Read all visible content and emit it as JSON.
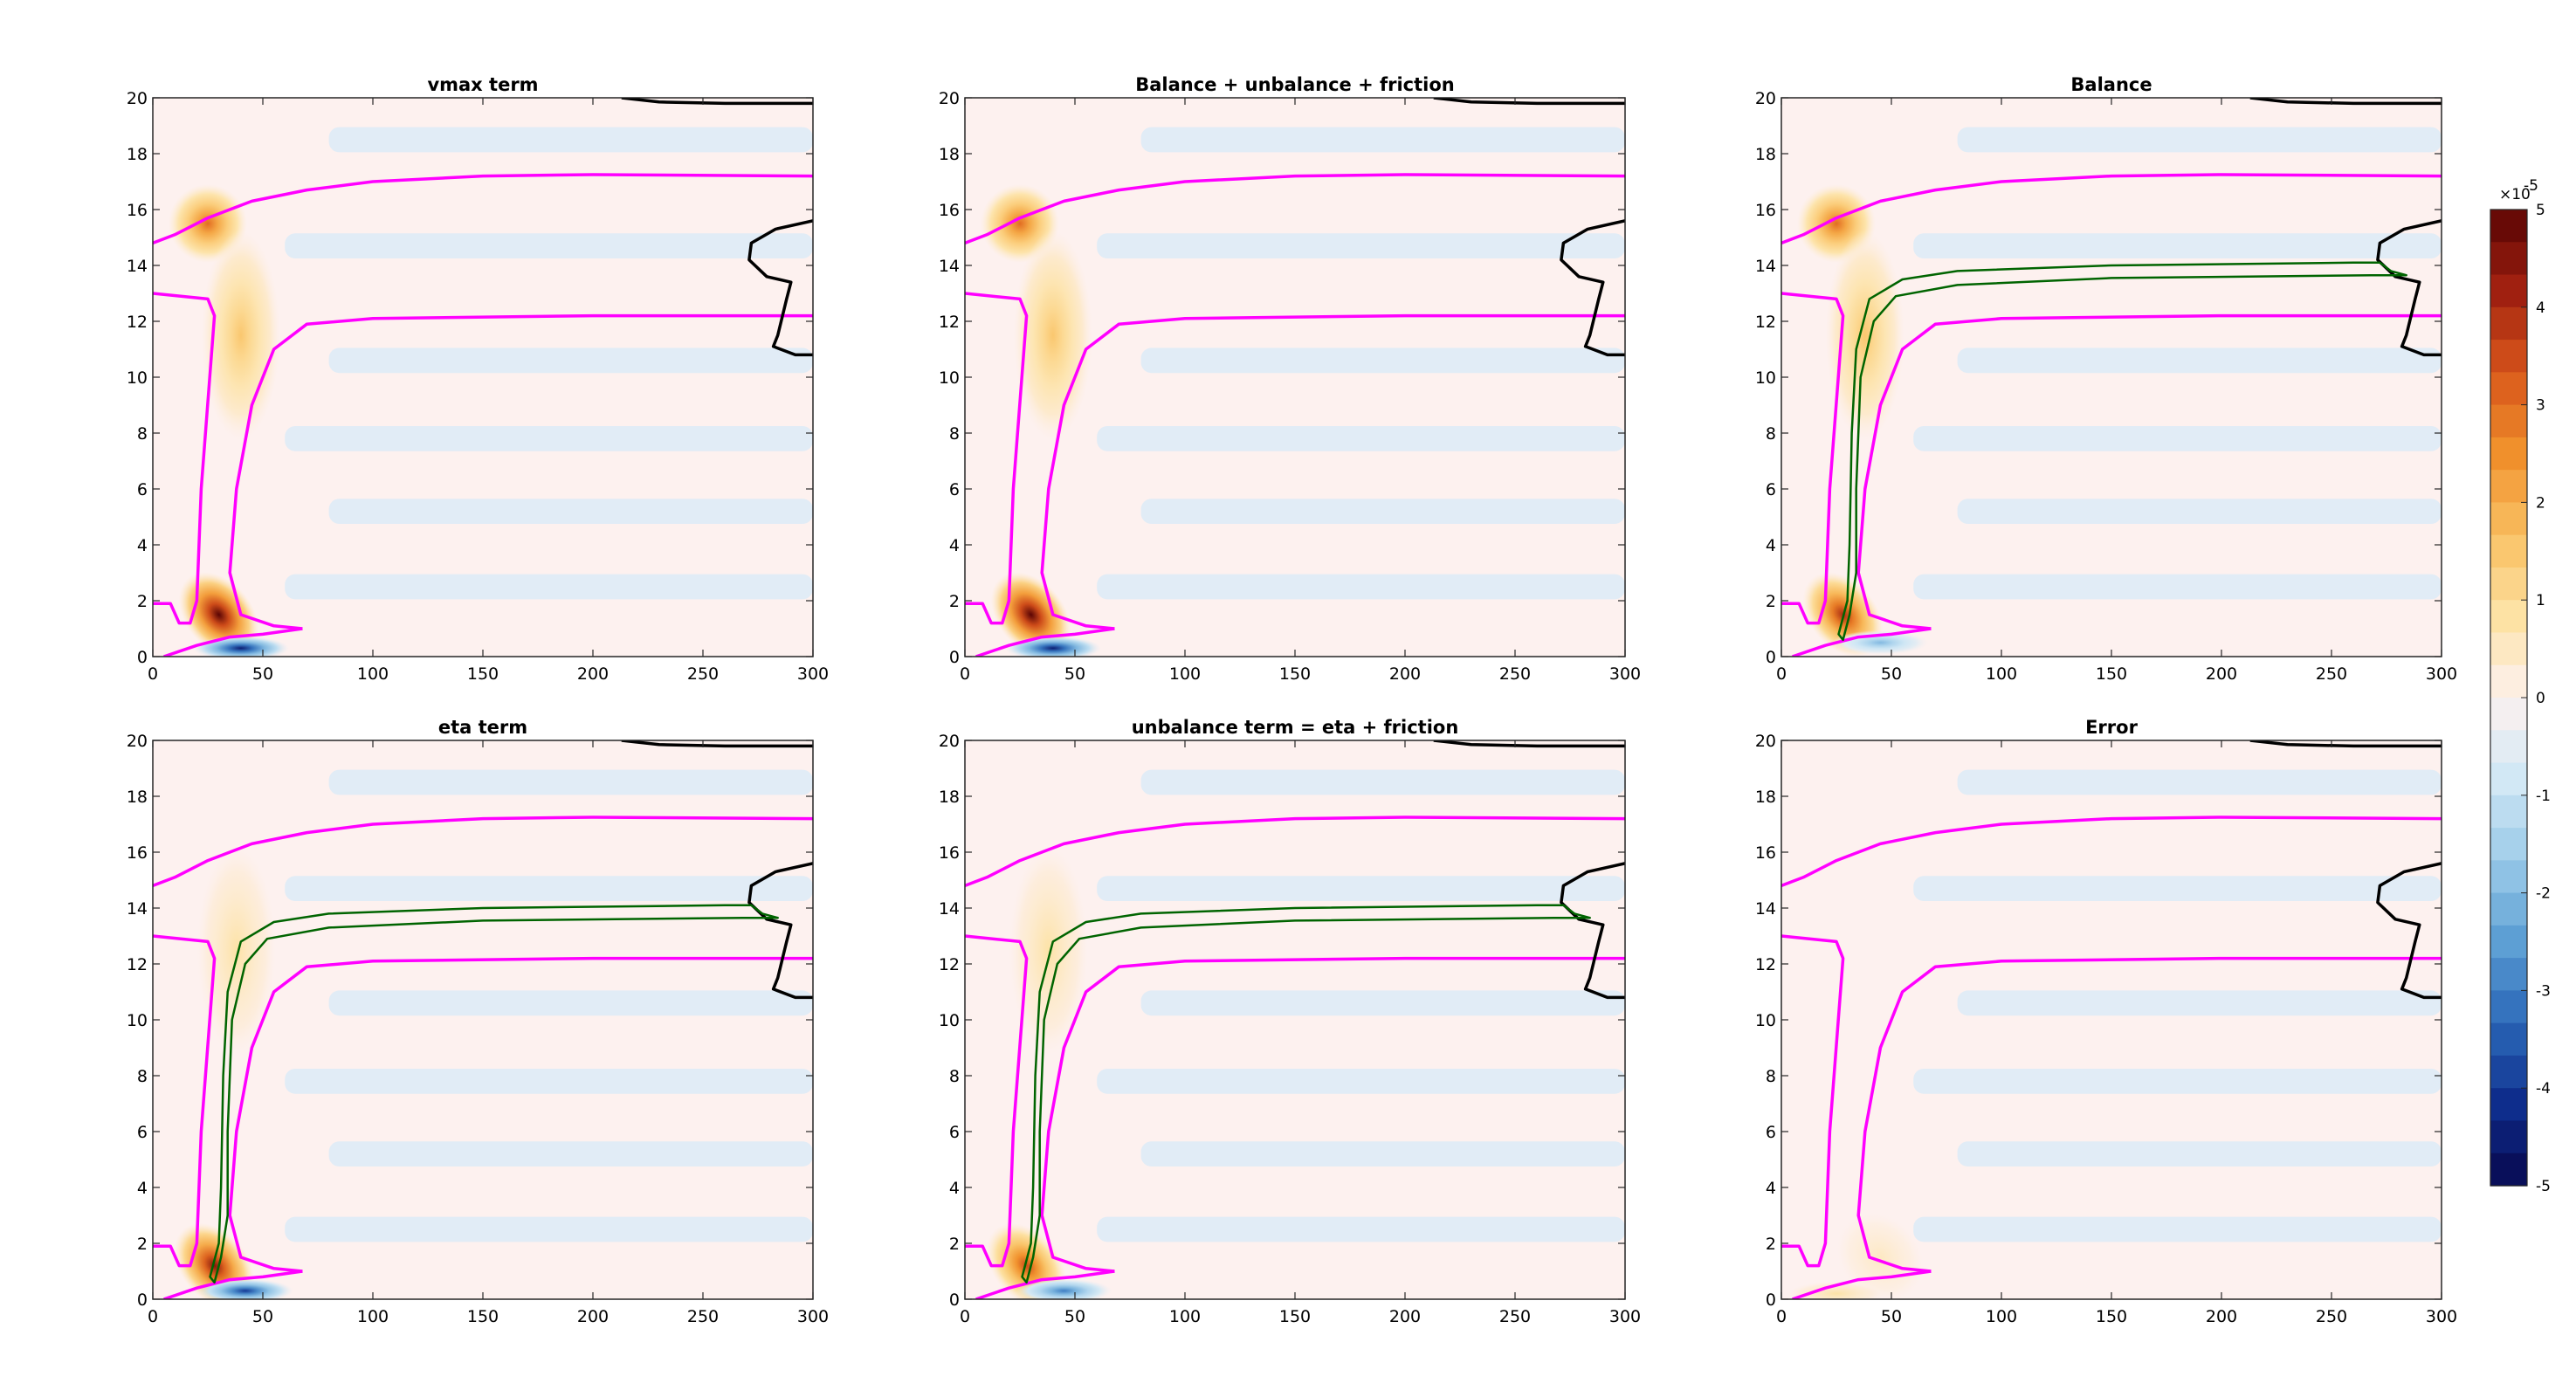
{
  "figure": {
    "colors": {
      "magenta_contour": "#ff00ff",
      "green_contour": "#006400",
      "black_contour": "#000000",
      "background_field": "#fdf1ef",
      "negative_field": "#d9ebf7"
    }
  },
  "chart_data": [
    {
      "type": "heatmap",
      "title": "vmax term",
      "xlim": [
        0,
        300
      ],
      "ylim": [
        0,
        20
      ],
      "xticks": [
        0,
        50,
        100,
        150,
        200,
        250,
        300
      ],
      "yticks": [
        0,
        2,
        4,
        6,
        8,
        10,
        12,
        14,
        16,
        18,
        20
      ],
      "green_contour": false,
      "features": [
        {
          "kind": "positive",
          "x": 30,
          "y": 1.5,
          "amplitude": 5e-05
        },
        {
          "kind": "positive",
          "x": 25,
          "y": 15.5,
          "amplitude": 3e-05
        },
        {
          "kind": "positive",
          "x": 40,
          "y": 11.5,
          "amplitude": 1.5e-05
        },
        {
          "kind": "negative",
          "x": 40,
          "y": 0.3,
          "amplitude": -4.5e-05
        }
      ]
    },
    {
      "type": "heatmap",
      "title": "Balance + unbalance + friction",
      "xlim": [
        0,
        300
      ],
      "ylim": [
        0,
        20
      ],
      "xticks": [
        0,
        50,
        100,
        150,
        200,
        250,
        300
      ],
      "yticks": [
        0,
        2,
        4,
        6,
        8,
        10,
        12,
        14,
        16,
        18,
        20
      ],
      "green_contour": false,
      "features": [
        {
          "kind": "positive",
          "x": 30,
          "y": 1.5,
          "amplitude": 5e-05
        },
        {
          "kind": "positive",
          "x": 25,
          "y": 15.5,
          "amplitude": 3e-05
        },
        {
          "kind": "positive",
          "x": 40,
          "y": 11.5,
          "amplitude": 1.5e-05
        },
        {
          "kind": "negative",
          "x": 40,
          "y": 0.3,
          "amplitude": -4.5e-05
        }
      ]
    },
    {
      "type": "heatmap",
      "title": "Balance",
      "xlim": [
        0,
        300
      ],
      "ylim": [
        0,
        20
      ],
      "xticks": [
        0,
        50,
        100,
        150,
        200,
        250,
        300
      ],
      "yticks": [
        0,
        2,
        4,
        6,
        8,
        10,
        12,
        14,
        16,
        18,
        20
      ],
      "green_contour": true,
      "features": [
        {
          "kind": "positive",
          "x": 28,
          "y": 1.5,
          "amplitude": 4e-05
        },
        {
          "kind": "positive",
          "x": 25,
          "y": 15.5,
          "amplitude": 3e-05
        },
        {
          "kind": "positive",
          "x": 38,
          "y": 11.5,
          "amplitude": 1.5e-05
        },
        {
          "kind": "negative",
          "x": 45,
          "y": 0.5,
          "amplitude": -2e-05
        }
      ]
    },
    {
      "type": "heatmap",
      "title": "eta term",
      "xlim": [
        0,
        300
      ],
      "ylim": [
        0,
        20
      ],
      "xticks": [
        0,
        50,
        100,
        150,
        200,
        250,
        300
      ],
      "yticks": [
        0,
        2,
        4,
        6,
        8,
        10,
        12,
        14,
        16,
        18,
        20
      ],
      "green_contour": true,
      "features": [
        {
          "kind": "positive",
          "x": 28,
          "y": 1.2,
          "amplitude": 4.5e-05
        },
        {
          "kind": "positive",
          "x": 38,
          "y": 12.5,
          "amplitude": 8e-06
        },
        {
          "kind": "negative",
          "x": 42,
          "y": 0.3,
          "amplitude": -4e-05
        }
      ]
    },
    {
      "type": "heatmap",
      "title": "unbalance term = eta + friction",
      "xlim": [
        0,
        300
      ],
      "ylim": [
        0,
        20
      ],
      "xticks": [
        0,
        50,
        100,
        150,
        200,
        250,
        300
      ],
      "yticks": [
        0,
        2,
        4,
        6,
        8,
        10,
        12,
        14,
        16,
        18,
        20
      ],
      "green_contour": true,
      "features": [
        {
          "kind": "positive",
          "x": 28,
          "y": 1.2,
          "amplitude": 3.5e-05
        },
        {
          "kind": "positive",
          "x": 38,
          "y": 12.5,
          "amplitude": 8e-06
        },
        {
          "kind": "negative",
          "x": 45,
          "y": 0.3,
          "amplitude": -3e-05
        }
      ]
    },
    {
      "type": "heatmap",
      "title": "Error",
      "xlim": [
        0,
        300
      ],
      "ylim": [
        0,
        20
      ],
      "xticks": [
        0,
        50,
        100,
        150,
        200,
        250,
        300
      ],
      "yticks": [
        0,
        2,
        4,
        6,
        8,
        10,
        12,
        14,
        16,
        18,
        20
      ],
      "green_contour": false,
      "features": [
        {
          "kind": "positive",
          "x": 45,
          "y": 1.5,
          "amplitude": 5e-06
        },
        {
          "kind": "positive",
          "x": 25,
          "y": 0.2,
          "amplitude": 8e-06
        }
      ]
    }
  ],
  "colorbar": {
    "exponent_label": "×10",
    "exponent_power": "-5",
    "ticks": [
      "5",
      "4",
      "3",
      "2",
      "1",
      "0",
      "-1",
      "-2",
      "-3",
      "-4",
      "-5"
    ],
    "range": [
      -5e-05,
      5e-05
    ],
    "colormap": [
      "#08084e",
      "#0e2d8c",
      "#2b68b8",
      "#5d9fd4",
      "#9ccbe9",
      "#d2e8f5",
      "#fdf1ef",
      "#fde2a4",
      "#f9c062",
      "#f0902c",
      "#d8561b",
      "#a02010",
      "#5a0404"
    ]
  }
}
